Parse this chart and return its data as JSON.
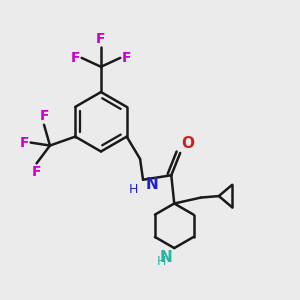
{
  "bg_color": "#ebebeb",
  "bond_color": "#1a1a1a",
  "N_pip_color": "#2db3a0",
  "N_amide_color": "#2020cc",
  "O_color": "#cc2020",
  "F_color": "#cc00cc",
  "line_width": 1.8,
  "font_size": 10,
  "fig_size": [
    3.0,
    3.0
  ],
  "dpi": 100,
  "xlim": [
    0.0,
    1.0
  ],
  "ylim": [
    0.0,
    1.0
  ]
}
